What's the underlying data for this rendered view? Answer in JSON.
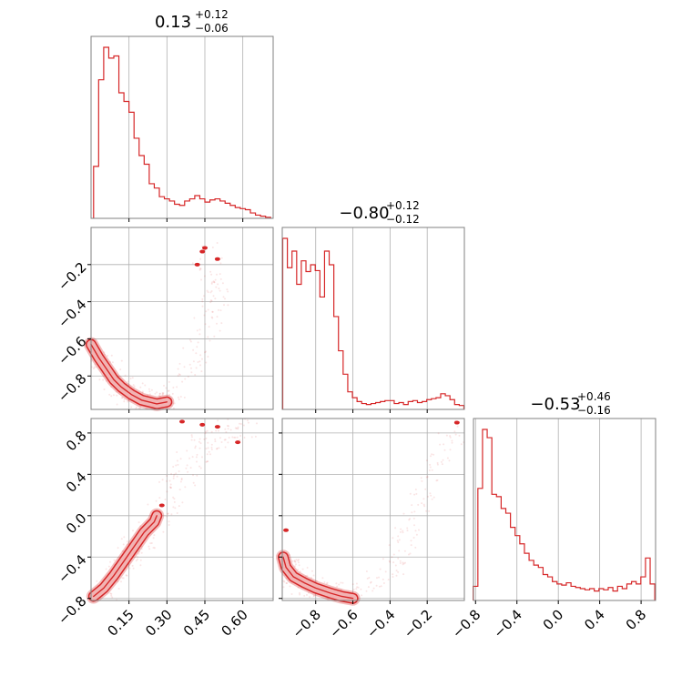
{
  "chart_data": {
    "type": "corner",
    "color": "#d62728",
    "grid": true,
    "panels": [
      {
        "id": "hist-p0",
        "type": "histogram",
        "title_main": "0.13",
        "title_plus": "+0.12",
        "title_minus": "−0.06",
        "xlim": [
          0.0,
          0.72
        ],
        "xticks": [
          0.15,
          0.3,
          0.45,
          0.6
        ],
        "bin_width": 0.02,
        "bins": [
          0.02,
          0.04,
          0.06,
          0.08,
          0.1,
          0.12,
          0.14,
          0.16,
          0.18,
          0.2,
          0.22,
          0.24,
          0.26,
          0.28,
          0.3,
          0.32,
          0.34,
          0.36,
          0.38,
          0.4,
          0.42,
          0.44,
          0.46,
          0.48,
          0.5,
          0.52,
          0.54,
          0.56,
          0.58,
          0.6,
          0.62,
          0.64,
          0.66,
          0.68,
          0.7
        ],
        "counts": [
          48,
          128,
          158,
          148,
          150,
          116,
          108,
          98,
          74,
          58,
          50,
          32,
          28,
          20,
          18,
          16,
          13,
          12,
          16,
          18,
          21,
          18,
          15,
          17,
          18,
          16,
          14,
          12,
          10,
          9,
          8,
          5,
          3,
          2,
          1
        ]
      },
      {
        "id": "hist-p1",
        "type": "histogram",
        "title_main": "−0.80",
        "title_plus": "+0.12",
        "title_minus": "−0.12",
        "xlim": [
          -0.98,
          0.0
        ],
        "xticks": [
          -0.8,
          -0.6,
          -0.4,
          -0.2
        ],
        "bin_width": 0.025,
        "bins": [
          -0.965,
          -0.94,
          -0.915,
          -0.89,
          -0.865,
          -0.84,
          -0.815,
          -0.79,
          -0.765,
          -0.74,
          -0.715,
          -0.69,
          -0.665,
          -0.64,
          -0.615,
          -0.59,
          -0.565,
          -0.54,
          -0.515,
          -0.49,
          -0.465,
          -0.44,
          -0.415,
          -0.39,
          -0.365,
          -0.34,
          -0.315,
          -0.29,
          -0.265,
          -0.24,
          -0.215,
          -0.19,
          -0.165,
          -0.14,
          -0.115,
          -0.09,
          -0.065,
          -0.04,
          -0.015
        ],
        "counts": [
          175,
          145,
          162,
          128,
          152,
          141,
          148,
          142,
          115,
          162,
          148,
          95,
          60,
          36,
          18,
          12,
          8,
          6,
          5,
          6,
          7,
          8,
          9,
          9,
          6,
          7,
          5,
          8,
          9,
          7,
          8,
          10,
          11,
          12,
          16,
          14,
          10,
          5,
          4
        ]
      },
      {
        "id": "hist-p2",
        "type": "histogram",
        "title_main": "−0.53",
        "title_plus": "+0.46",
        "title_minus": "−0.16",
        "xlim": [
          -0.82,
          0.94
        ],
        "xticks": [
          -0.8,
          -0.4,
          0.0,
          0.4,
          0.8
        ],
        "bin_width": 0.045,
        "bins": [
          -0.8,
          -0.755,
          -0.71,
          -0.665,
          -0.62,
          -0.575,
          -0.53,
          -0.485,
          -0.44,
          -0.395,
          -0.35,
          -0.305,
          -0.26,
          -0.215,
          -0.17,
          -0.125,
          -0.08,
          -0.035,
          0.01,
          0.055,
          0.1,
          0.145,
          0.19,
          0.235,
          0.28,
          0.325,
          0.37,
          0.415,
          0.46,
          0.505,
          0.55,
          0.595,
          0.64,
          0.685,
          0.73,
          0.775,
          0.82,
          0.865,
          0.91
        ],
        "counts": [
          12,
          95,
          145,
          138,
          90,
          88,
          78,
          74,
          62,
          55,
          48,
          40,
          34,
          30,
          28,
          22,
          20,
          16,
          14,
          13,
          15,
          12,
          11,
          10,
          9,
          10,
          8,
          10,
          9,
          11,
          8,
          12,
          10,
          14,
          16,
          14,
          20,
          36,
          14
        ]
      },
      {
        "id": "joint-p1-p0",
        "type": "density2d",
        "xlim": [
          0.0,
          0.72
        ],
        "ylim": [
          -0.98,
          0.0
        ],
        "yticks": [
          -0.8,
          -0.6,
          -0.4,
          -0.2
        ],
        "curve": [
          [
            0.0,
            -0.64
          ],
          [
            0.04,
            -0.72
          ],
          [
            0.08,
            -0.8
          ],
          [
            0.12,
            -0.86
          ],
          [
            0.16,
            -0.9
          ],
          [
            0.2,
            -0.93
          ],
          [
            0.26,
            -0.95
          ],
          [
            0.3,
            -0.94
          ],
          [
            0.36,
            -0.88
          ],
          [
            0.4,
            -0.75
          ],
          [
            0.44,
            -0.6
          ],
          [
            0.48,
            -0.45
          ],
          [
            0.5,
            -0.32
          ],
          [
            0.45,
            -0.14
          ]
        ]
      },
      {
        "id": "joint-p2-p0",
        "type": "density2d",
        "xlim": [
          0.0,
          0.72
        ],
        "ylim": [
          -0.82,
          0.94
        ],
        "yticks": [
          -0.8,
          -0.4,
          0.0,
          0.4,
          0.8
        ],
        "curve": [
          [
            0.0,
            -0.78
          ],
          [
            0.06,
            -0.7
          ],
          [
            0.1,
            -0.55
          ],
          [
            0.14,
            -0.4
          ],
          [
            0.18,
            -0.28
          ],
          [
            0.24,
            -0.1
          ],
          [
            0.28,
            0.06
          ],
          [
            0.32,
            0.25
          ],
          [
            0.36,
            0.4
          ],
          [
            0.4,
            0.55
          ],
          [
            0.44,
            0.66
          ],
          [
            0.48,
            0.76
          ],
          [
            0.56,
            0.84
          ],
          [
            0.62,
            0.88
          ]
        ]
      },
      {
        "id": "joint-p2-p1",
        "type": "density2d",
        "xlim": [
          -0.98,
          0.0
        ],
        "ylim": [
          -0.82,
          0.94
        ],
        "curve": [
          [
            -0.98,
            -0.38
          ],
          [
            -0.96,
            -0.5
          ],
          [
            -0.92,
            -0.6
          ],
          [
            -0.86,
            -0.66
          ],
          [
            -0.8,
            -0.71
          ],
          [
            -0.72,
            -0.76
          ],
          [
            -0.64,
            -0.79
          ],
          [
            -0.58,
            -0.8
          ],
          [
            -0.5,
            -0.72
          ],
          [
            -0.42,
            -0.58
          ],
          [
            -0.36,
            -0.38
          ],
          [
            -0.32,
            -0.18
          ],
          [
            -0.28,
            0.05
          ],
          [
            -0.22,
            0.3
          ],
          [
            -0.14,
            0.55
          ],
          [
            -0.06,
            0.8
          ],
          [
            -0.02,
            0.9
          ]
        ]
      }
    ]
  }
}
